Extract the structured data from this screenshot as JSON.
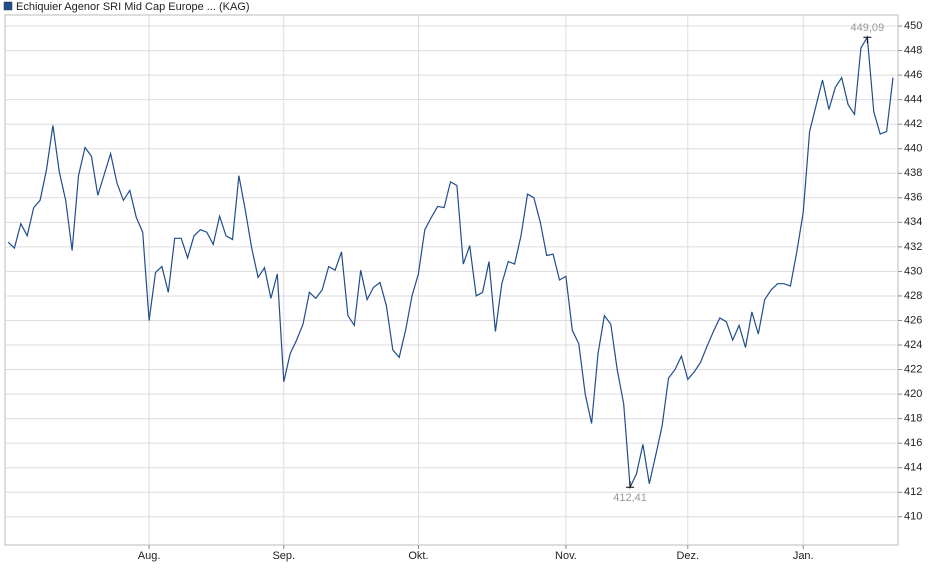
{
  "chart_data": {
    "type": "line",
    "categories": [
      null,
      null,
      null,
      null,
      null,
      null,
      null,
      null,
      null,
      null,
      null,
      null,
      null,
      null,
      null,
      null,
      null,
      null,
      null,
      null,
      null,
      null,
      "Aug.",
      null,
      null,
      null,
      null,
      null,
      null,
      null,
      null,
      null,
      null,
      null,
      null,
      null,
      null,
      null,
      null,
      null,
      null,
      null,
      null,
      "Sep.",
      null,
      null,
      null,
      null,
      null,
      null,
      null,
      null,
      null,
      null,
      null,
      null,
      null,
      null,
      null,
      null,
      null,
      null,
      null,
      null,
      "Okt.",
      null,
      null,
      null,
      null,
      null,
      null,
      null,
      null,
      null,
      null,
      null,
      null,
      null,
      null,
      null,
      null,
      null,
      null,
      null,
      null,
      null,
      null,
      "Nov.",
      null,
      null,
      null,
      null,
      null,
      null,
      null,
      null,
      null,
      null,
      null,
      null,
      null,
      null,
      null,
      null,
      null,
      null,
      "Dez.",
      null,
      null,
      null,
      null,
      null,
      null,
      null,
      null,
      null,
      null,
      null,
      null,
      null,
      null,
      null,
      null,
      null,
      "Jan.",
      null,
      null,
      null,
      null,
      null,
      null,
      null,
      null,
      null,
      null,
      null,
      null,
      null,
      null
    ],
    "series": [
      {
        "name": "Echiquier Agenor SRI Mid Cap Europe ... (KAG)",
        "color": "#1f4e8c",
        "values": [
          432.4,
          431.9,
          433.9,
          432.9,
          435.2,
          435.8,
          438.3,
          441.9,
          438.1,
          435.8,
          431.7,
          437.8,
          440.1,
          439.4,
          436.2,
          437.9,
          439.6,
          437.2,
          435.8,
          436.6,
          434.4,
          433.2,
          426.0,
          429.9,
          430.4,
          428.3,
          432.7,
          432.7,
          431.1,
          432.9,
          433.4,
          433.2,
          432.2,
          434.5,
          432.9,
          432.6,
          437.8,
          435.0,
          431.9,
          429.5,
          430.3,
          427.8,
          429.8,
          421.0,
          423.3,
          424.4,
          425.7,
          428.3,
          427.8,
          428.5,
          430.4,
          430.1,
          431.6,
          426.4,
          425.6,
          430.1,
          427.7,
          428.7,
          429.1,
          427.2,
          423.6,
          423.0,
          425.2,
          428.0,
          429.8,
          433.4,
          434.4,
          435.3,
          435.2,
          437.3,
          437.0,
          430.6,
          432.1,
          428.0,
          428.3,
          430.8,
          425.1,
          429.0,
          430.8,
          430.6,
          432.9,
          436.3,
          436.0,
          434.0,
          431.3,
          431.4,
          429.3,
          429.6,
          425.2,
          424.1,
          420.0,
          417.6,
          423.3,
          426.4,
          425.7,
          422.0,
          419.2,
          412.41,
          413.5,
          415.9,
          412.7,
          415.0,
          417.4,
          421.3,
          422.0,
          423.1,
          421.2,
          421.8,
          422.6,
          423.9,
          425.1,
          426.2,
          425.9,
          424.4,
          425.6,
          423.8,
          426.7,
          424.9,
          427.7,
          428.5,
          429.0,
          429.0,
          428.8,
          431.6,
          434.8,
          441.4,
          443.5,
          445.6,
          443.2,
          445.0,
          445.8,
          443.6,
          442.8,
          448.2,
          449.09,
          443.0,
          441.2,
          441.4,
          445.8
        ],
        "max_label": "449,09",
        "min_label": "412,41"
      }
    ],
    "ylim": [
      407.7,
      450.9
    ],
    "yticks": [
      410,
      412,
      414,
      416,
      418,
      420,
      422,
      424,
      426,
      428,
      430,
      432,
      434,
      436,
      438,
      440,
      442,
      444,
      446,
      448,
      450
    ],
    "grid": true
  }
}
